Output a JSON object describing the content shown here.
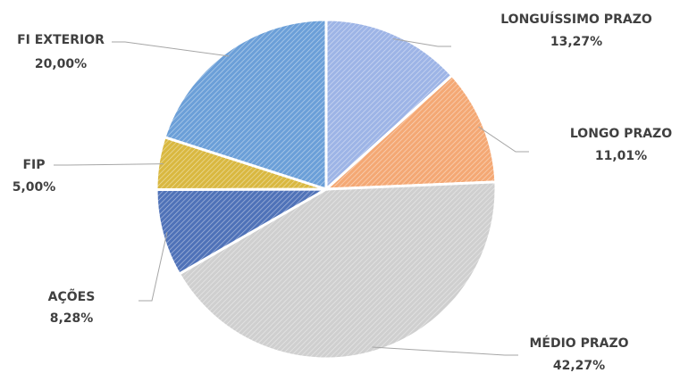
{
  "chart_data": {
    "type": "pie",
    "categories": [
      "LONGUÍSSIMO PRAZO",
      "LONGO PRAZO",
      "MÉDIO PRAZO",
      "AÇÕES",
      "FIP",
      "FI EXTERIOR"
    ],
    "values": [
      13.27,
      11.01,
      42.27,
      8.28,
      5.0,
      20.0
    ],
    "value_labels": [
      "13,27%",
      "11,01%",
      "42,27%",
      "8,28%",
      "5,00%",
      "20,00%"
    ],
    "colors": [
      "#9db4e6",
      "#f4a874",
      "#cfcfcf",
      "#4f72b8",
      "#d9b840",
      "#6b9fd8"
    ]
  }
}
